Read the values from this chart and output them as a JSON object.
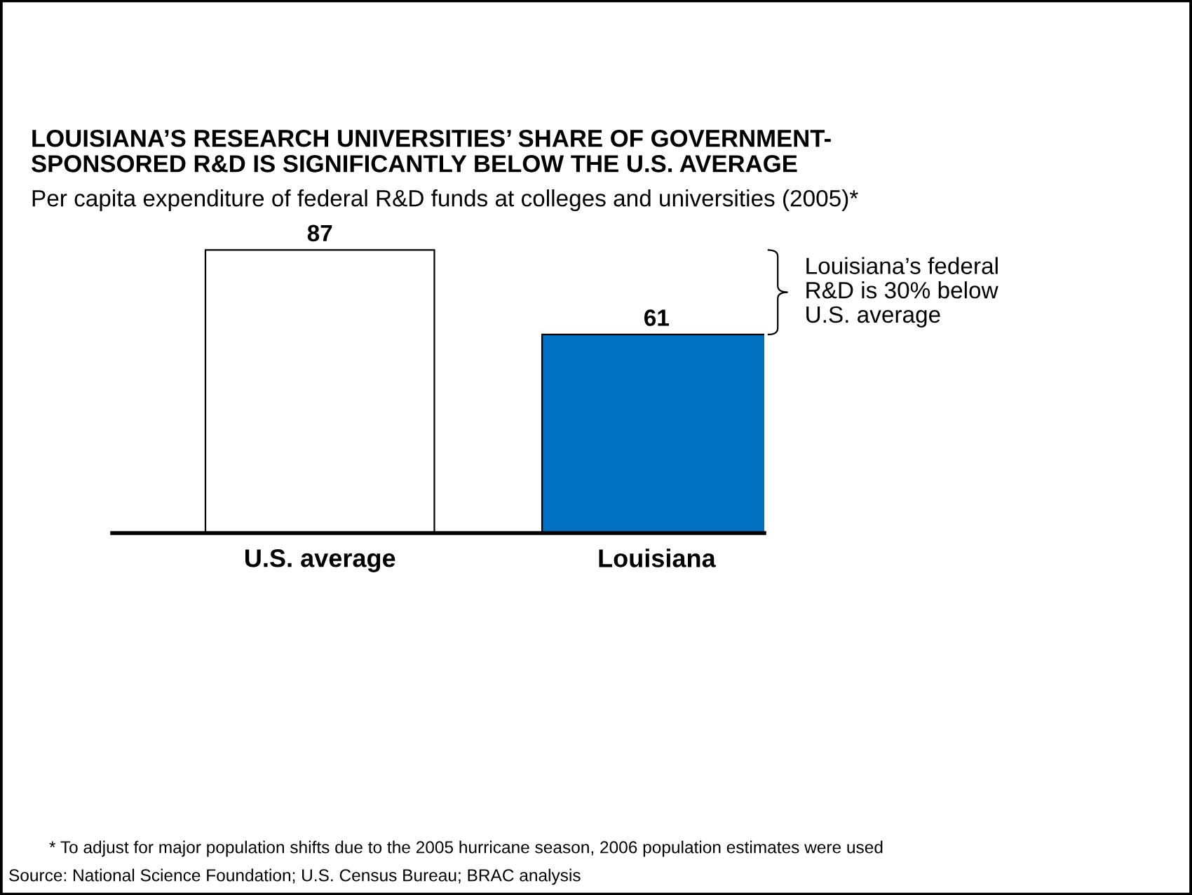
{
  "chart_data": {
    "type": "bar",
    "title": "LOUISIANA’S RESEARCH UNIVERSITIES’ SHARE OF GOVERNMENT-\nSPONSORED R&D IS SIGNIFICANTLY BELOW THE U.S. AVERAGE",
    "subtitle": "Per capita expenditure of federal R&D funds at colleges and universities (2005)*",
    "categories": [
      "U.S. average",
      "Louisiana"
    ],
    "values": [
      87,
      61
    ],
    "colors": [
      "#ffffff",
      "#0070c0"
    ],
    "data_labels": true,
    "grid": false,
    "legend": false,
    "tick_labels": "x",
    "annotations": [
      "Louisiana’s federal\nR&D is 30% below\nU.S. average",
      "* To adjust for major population shifts due to the 2005 hurricane season, 2006 population estimates were used",
      "Source: National Science Foundation; U.S. Census Bureau; BRAC analysis"
    ]
  }
}
